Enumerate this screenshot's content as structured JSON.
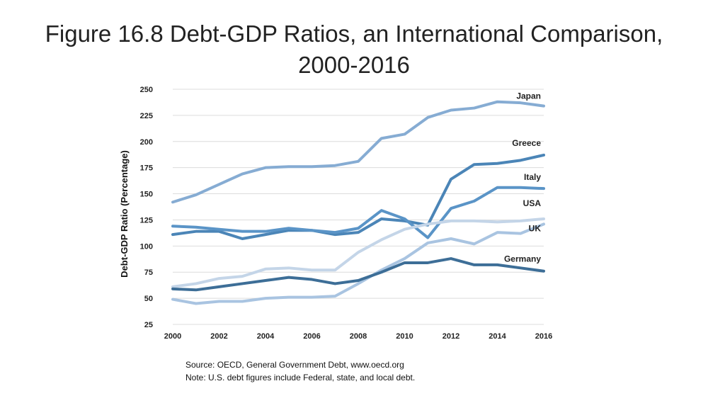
{
  "slide": {
    "title_line1": "Figure 16.8 Debt-GDP Ratios, an International Comparison,",
    "title_line2": "2000-2016",
    "source": "Source: OECD, General Government Debt, www.oecd.org",
    "note": "Note: U.S. debt figures include Federal, state, and local debt."
  },
  "chart_data": {
    "type": "line",
    "title": "",
    "xlabel": "",
    "ylabel": "Debt-GDP Ratio (Percentage)",
    "x": [
      2000,
      2001,
      2002,
      2003,
      2004,
      2005,
      2006,
      2007,
      2008,
      2009,
      2010,
      2011,
      2012,
      2013,
      2014,
      2015,
      2016
    ],
    "xlim": [
      2000,
      2016
    ],
    "xticks": [
      "2000",
      "2002",
      "2004",
      "2006",
      "2008",
      "2010",
      "2012",
      "2014",
      "2016"
    ],
    "ylim": [
      25,
      250
    ],
    "yticks": [
      "25",
      "50",
      "75",
      "100",
      "125",
      "150",
      "175",
      "200",
      "225",
      "250"
    ],
    "grid": "horizontal",
    "legend": "inline labels at line ends",
    "series": [
      {
        "name": "Japan",
        "color": "#86acd3",
        "values": [
          142,
          149,
          159,
          169,
          175,
          176,
          176,
          177,
          181,
          203,
          207,
          223,
          230,
          232,
          238,
          237,
          234
        ]
      },
      {
        "name": "Greece",
        "color": "#4b85b7",
        "values": [
          111,
          114,
          114,
          107,
          111,
          115,
          115,
          111,
          113,
          126,
          124,
          120,
          164,
          178,
          179,
          182,
          187
        ]
      },
      {
        "name": "Italy",
        "color": "#5a94c7",
        "values": [
          119,
          118,
          116,
          114,
          114,
          117,
          115,
          113,
          117,
          134,
          126,
          108,
          136,
          143,
          156,
          156,
          155
        ]
      },
      {
        "name": "USA",
        "color": "#c4d5e8",
        "values": [
          61,
          64,
          69,
          71,
          78,
          79,
          77,
          77,
          94,
          106,
          116,
          121,
          124,
          124,
          123,
          124,
          126
        ]
      },
      {
        "name": "UK",
        "color": "#a9c4e1",
        "values": [
          49,
          45,
          47,
          47,
          50,
          51,
          51,
          52,
          64,
          77,
          88,
          103,
          107,
          102,
          113,
          112,
          121
        ]
      },
      {
        "name": "Germany",
        "color": "#3d6e97",
        "values": [
          59,
          58,
          61,
          64,
          67,
          70,
          68,
          64,
          67,
          75,
          84,
          84,
          88,
          82,
          82,
          79,
          76
        ]
      }
    ]
  }
}
